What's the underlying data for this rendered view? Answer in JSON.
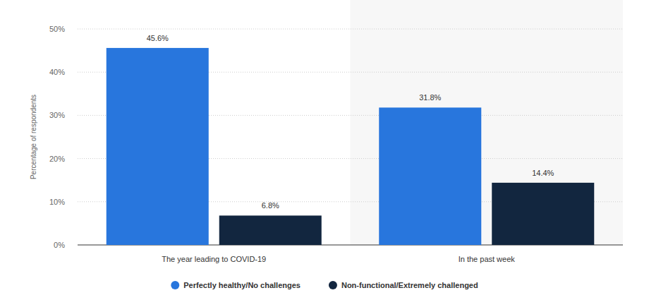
{
  "chart_data": {
    "type": "bar",
    "y_label": "Percentage of respondents",
    "categories": [
      "The year leading to COVID-19",
      "In the past week"
    ],
    "series": [
      {
        "name": "Perfectly healthy/No challenges",
        "color": "#2876dd",
        "values": [
          45.6,
          31.8
        ],
        "value_labels": [
          "45.6%",
          "31.8%"
        ]
      },
      {
        "name": "Non-functional/Extremely challenged",
        "color": "#12263f",
        "values": [
          6.8,
          14.4
        ],
        "value_labels": [
          "6.8%",
          "14.4%"
        ]
      }
    ],
    "ylim": [
      0,
      50
    ],
    "yticks": [
      {
        "value": 0,
        "label": "0%"
      },
      {
        "value": 10,
        "label": "10%"
      },
      {
        "value": 20,
        "label": "20%"
      },
      {
        "value": 30,
        "label": "30%"
      },
      {
        "value": 40,
        "label": "40%"
      },
      {
        "value": 50,
        "label": "50%"
      }
    ],
    "grid": true,
    "legend": "bottom",
    "data_labels": true
  }
}
